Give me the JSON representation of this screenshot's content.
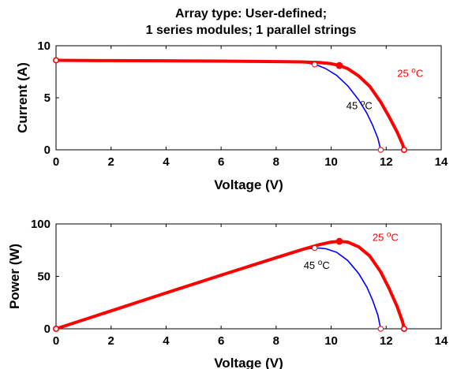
{
  "figure": {
    "title_line1": "Array type: User-defined;",
    "title_line2": "1 series modules; 1 parallel strings"
  },
  "colors": {
    "series_25C": "#ff0000",
    "series_45C": "#0000ff",
    "axes": "#000000",
    "background": "#ffffff"
  },
  "chart_data": [
    {
      "type": "line",
      "title": "Array type: User-defined; 1 series modules; 1 parallel strings",
      "xlabel": "Voltage (V)",
      "ylabel": "Current (A)",
      "xlim": [
        0,
        14
      ],
      "ylim": [
        0,
        10
      ],
      "xticks": [
        0,
        2,
        4,
        6,
        8,
        10,
        12,
        14
      ],
      "yticks": [
        0,
        5,
        10
      ],
      "grid": false,
      "series": [
        {
          "name": "25 °C",
          "color": "#ff0000",
          "x": [
            0,
            2,
            4,
            6,
            8,
            9,
            9.6,
            10,
            10.3,
            10.6,
            11,
            11.4,
            11.8,
            12.1,
            12.4,
            12.6,
            12.65
          ],
          "y": [
            8.6,
            8.57,
            8.55,
            8.52,
            8.48,
            8.44,
            8.38,
            8.27,
            8.1,
            7.8,
            7.1,
            6.1,
            4.6,
            3.2,
            1.7,
            0.5,
            0
          ]
        },
        {
          "name": "45 °C",
          "color": "#0000ff",
          "x": [
            0,
            2,
            4,
            6,
            8,
            8.8,
            9.2,
            9.5,
            9.8,
            10.2,
            10.6,
            11,
            11.3,
            11.5,
            11.7,
            11.8
          ],
          "y": [
            8.62,
            8.6,
            8.57,
            8.54,
            8.5,
            8.43,
            8.32,
            8.12,
            7.8,
            7.15,
            6.15,
            4.8,
            3.5,
            2.4,
            1.1,
            0
          ]
        }
      ],
      "markers": [
        {
          "series": "25 °C",
          "kind": "isc",
          "x": 0,
          "y": 8.6
        },
        {
          "series": "25 °C",
          "kind": "mpp",
          "x": 10.3,
          "y": 8.1
        },
        {
          "series": "25 °C",
          "kind": "voc",
          "x": 12.65,
          "y": 0
        },
        {
          "series": "45 °C",
          "kind": "mpp",
          "x": 9.4,
          "y": 8.2
        },
        {
          "series": "45 °C",
          "kind": "voc",
          "x": 11.8,
          "y": 0
        }
      ],
      "annotations": [
        {
          "text": "25",
          "sup": "o",
          "tail": "C",
          "color": "#ff0000",
          "x": 12.4,
          "y": 7.0
        },
        {
          "text": "45",
          "sup": "o",
          "tail": "C",
          "color": "#000000",
          "x": 10.55,
          "y": 3.9
        }
      ]
    },
    {
      "type": "line",
      "xlabel": "Voltage (V)",
      "ylabel": "Power (W)",
      "xlim": [
        0,
        14
      ],
      "ylim": [
        0,
        100
      ],
      "xticks": [
        0,
        2,
        4,
        6,
        8,
        10,
        12,
        14
      ],
      "yticks": [
        0,
        50,
        100
      ],
      "grid": false,
      "series": [
        {
          "name": "25 °C",
          "color": "#ff0000",
          "x": [
            0,
            2,
            4,
            6,
            8,
            9,
            9.6,
            10,
            10.3,
            10.6,
            11,
            11.4,
            11.8,
            12.1,
            12.4,
            12.6,
            12.65
          ],
          "y": [
            0,
            17.1,
            34.2,
            51.1,
            67.8,
            76,
            80.4,
            82.7,
            83.4,
            82.7,
            78.1,
            69.5,
            54.3,
            38.7,
            21.1,
            6.3,
            0
          ]
        },
        {
          "name": "45 °C",
          "color": "#0000ff",
          "x": [
            0,
            2,
            4,
            6,
            8,
            8.8,
            9.2,
            9.5,
            9.8,
            10.2,
            10.6,
            11,
            11.3,
            11.5,
            11.7,
            11.8
          ],
          "y": [
            0,
            17.2,
            34.3,
            51.2,
            68,
            74.2,
            76.5,
            77.1,
            76.4,
            72.9,
            65.2,
            52.8,
            39.6,
            27.6,
            12.9,
            0
          ]
        }
      ],
      "markers": [
        {
          "series": "25 °C",
          "kind": "origin",
          "x": 0,
          "y": 0
        },
        {
          "series": "25 °C",
          "kind": "mpp",
          "x": 10.3,
          "y": 83.4
        },
        {
          "series": "25 °C",
          "kind": "voc",
          "x": 12.65,
          "y": 0
        },
        {
          "series": "45 °C",
          "kind": "mpp",
          "x": 9.4,
          "y": 77
        },
        {
          "series": "45 °C",
          "kind": "voc",
          "x": 11.8,
          "y": 0
        }
      ],
      "annotations": [
        {
          "text": "25",
          "sup": "o",
          "tail": "C",
          "color": "#ff0000",
          "x": 11.5,
          "y": 84
        },
        {
          "text": "45",
          "sup": "o",
          "tail": "C",
          "color": "#000000",
          "x": 9.0,
          "y": 57
        }
      ]
    }
  ]
}
